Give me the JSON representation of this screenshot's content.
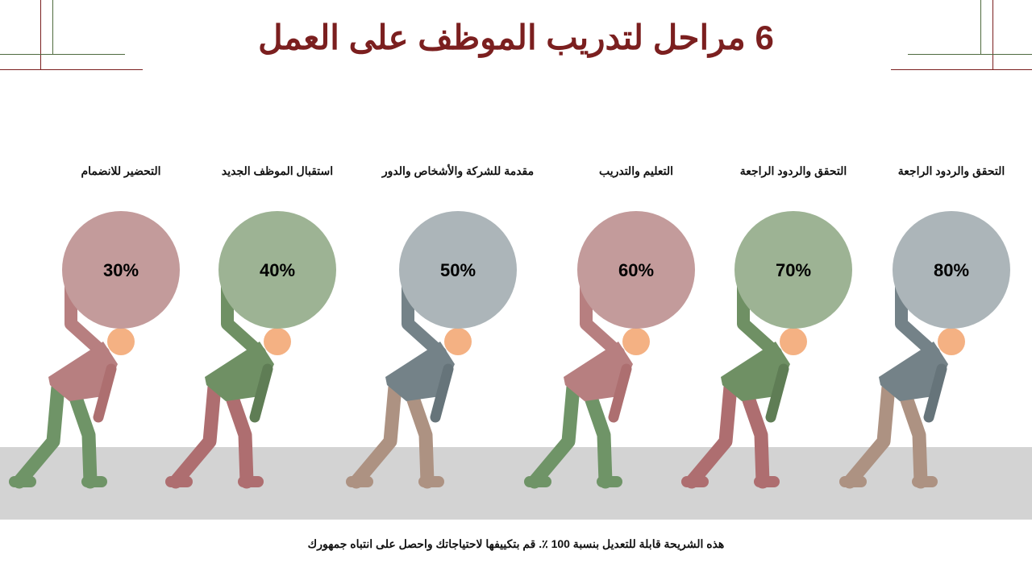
{
  "title": "6 مراحل لتدريب الموظف على العمل",
  "footer": "هذه الشريحة قابلة للتعديل بنسبة 100 ٪. قم بتكييفها لاحتياجاتك واحصل على انتباه جمهورك",
  "colors": {
    "title": "#7b1f1f",
    "accent_green": "#4f6b3f",
    "floor": "#d3d3d3",
    "head": "#f4b183"
  },
  "stages": [
    {
      "label": "التحضير للانضمام",
      "percent": "30%",
      "value": 30,
      "theme": "pink"
    },
    {
      "label": "استقبال الموظف الجديد",
      "percent": "40%",
      "value": 40,
      "theme": "green"
    },
    {
      "label": "مقدمة للشركة والأشخاص والدور",
      "percent": "50%",
      "value": 50,
      "theme": "gray"
    },
    {
      "label": "التعليم والتدريب",
      "percent": "60%",
      "value": 60,
      "theme": "pink"
    },
    {
      "label": "التحقق والردود الراجعة",
      "percent": "70%",
      "value": 70,
      "theme": "green"
    },
    {
      "label": "التحقق والردود الراجعة",
      "percent": "80%",
      "value": 80,
      "theme": "gray"
    }
  ],
  "themes": {
    "pink": {
      "ball": "#c39b9b",
      "torso": "#b77f80",
      "arm": "#ad6f70",
      "legs": "#6f9467"
    },
    "green": {
      "ball": "#9db394",
      "torso": "#6f9064",
      "arm": "#5f7d55",
      "legs": "#ae6e70"
    },
    "gray": {
      "ball": "#acb5b9",
      "torso": "#748288",
      "arm": "#66747a",
      "legs": "#ad9282"
    }
  }
}
